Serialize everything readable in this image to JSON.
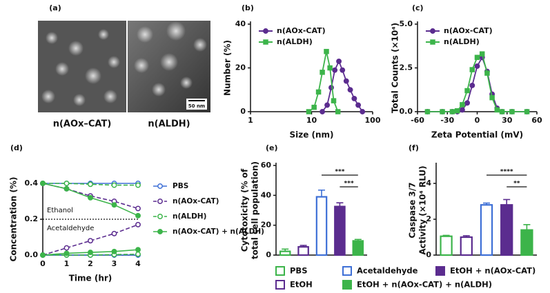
{
  "figure_a": {
    "panel": "(a)",
    "captions": [
      "n(AOx–CAT)",
      "n(ALDH)"
    ],
    "scale_bar": "50 nm"
  },
  "chart_data": [
    {
      "type": "scatter",
      "panel": "(b)",
      "xlabel": "Size (nm)",
      "ylabel": "Number (%)",
      "xlog": true,
      "xlim": [
        1,
        100
      ],
      "xticks": [
        1,
        10,
        100
      ],
      "ylim": [
        0,
        40
      ],
      "yticks": [
        0,
        20,
        40
      ],
      "series": [
        {
          "name": "n(AOx-CAT)",
          "color": "#5b2c8f",
          "marker": "circle",
          "x": [
            15,
            18,
            21,
            24,
            28,
            32,
            37,
            43,
            50,
            58,
            68
          ],
          "values": [
            0,
            3,
            11,
            19,
            23,
            19,
            14,
            10,
            6,
            3,
            0
          ]
        },
        {
          "name": "n(ALDH)",
          "color": "#3cb44a",
          "marker": "square",
          "x": [
            9,
            11,
            13,
            15,
            17.5,
            20,
            23,
            27
          ],
          "values": [
            0,
            2,
            9,
            18,
            27.5,
            20,
            5,
            0
          ]
        }
      ]
    },
    {
      "type": "scatter",
      "panel": "(c)",
      "xlabel": "Zeta Potential (mV)",
      "ylabel": "Total Counts (×10⁴)",
      "xlim": [
        -60,
        60
      ],
      "xticks": [
        -60,
        -30,
        0,
        30,
        60
      ],
      "ylim": [
        0,
        5
      ],
      "yticks": [
        {
          "value": 0,
          "label": "0.0"
        },
        {
          "value": 2.5,
          "label": "2.5"
        },
        {
          "value": 5,
          "label": "5.0"
        }
      ],
      "series": [
        {
          "name": "n(AOx-CAT)",
          "color": "#5b2c8f",
          "marker": "circle",
          "x": [
            -50,
            -35,
            -25,
            -20,
            -15,
            -10,
            -5,
            0,
            5,
            10,
            15,
            20,
            25,
            35,
            50
          ],
          "values": [
            0,
            0,
            0,
            0,
            0.1,
            0.5,
            1.5,
            2.6,
            3.1,
            2.3,
            1,
            0.2,
            0,
            0,
            0
          ]
        },
        {
          "name": "n(ALDH)",
          "color": "#3cb44a",
          "marker": "square",
          "x": [
            -50,
            -35,
            -25,
            -20,
            -15,
            -10,
            -5,
            0,
            5,
            10,
            15,
            20,
            25,
            35,
            50
          ],
          "values": [
            0,
            0,
            0,
            0.05,
            0.4,
            1.2,
            2.4,
            3.1,
            3.3,
            2.2,
            0.8,
            0.1,
            0,
            0,
            0
          ]
        }
      ]
    },
    {
      "type": "line",
      "panel": "(d)",
      "xlabel": "Time (hr)",
      "ylabel": "Concentration (%)",
      "x": [
        0,
        1,
        2,
        3,
        4
      ],
      "xlim": [
        0,
        4
      ],
      "xticks": [
        0,
        1,
        2,
        3,
        4
      ],
      "ylim": [
        0,
        0.4
      ],
      "yticks": [
        {
          "value": 0,
          "label": "0.0"
        },
        {
          "value": 0.2,
          "label": "0.2"
        },
        {
          "value": 0.4,
          "label": "0.4"
        }
      ],
      "hline": 0.2,
      "annotations": [
        "Ethanol",
        "Acetaldehyde"
      ],
      "series": [
        {
          "name": "PBS",
          "color": "#3d6fd6",
          "filled": false,
          "dashed": false,
          "ethanol": [
            0.4,
            0.4,
            0.4,
            0.4,
            0.4
          ],
          "acetaldehyde": [
            0,
            0,
            0,
            0,
            0
          ]
        },
        {
          "name": "n(AOx-CAT)",
          "color": "#5b2c8f",
          "filled": false,
          "dashed": true,
          "ethanol": [
            0.4,
            0.37,
            0.33,
            0.3,
            0.26
          ],
          "acetaldehyde": [
            0,
            0.04,
            0.08,
            0.12,
            0.17
          ]
        },
        {
          "name": "n(ALDH)",
          "color": "#3cb44a",
          "filled": false,
          "dashed": true,
          "ethanol": [
            0.4,
            0.4,
            0.395,
            0.39,
            0.39
          ],
          "acetaldehyde": [
            0,
            0,
            0,
            0.003,
            0.005
          ]
        },
        {
          "name": "n(AOx-CAT) + n(ALDH)",
          "color": "#3cb44a",
          "filled": true,
          "dashed": false,
          "ethanol": [
            0.4,
            0.37,
            0.32,
            0.28,
            0.22
          ],
          "acetaldehyde": [
            0,
            0.01,
            0.015,
            0.02,
            0.03
          ]
        }
      ]
    },
    {
      "type": "bar",
      "panel": "(e)",
      "ylabel": [
        "Cytotoxicity (% of",
        "total cell population)"
      ],
      "categories": [
        "PBS",
        "EtOH",
        "Acetaldehyde",
        "EtOH + n(AOx-CAT)",
        "EtOH + n(AOx-CAT) + n(ALDH)"
      ],
      "colors": [
        "#3cb44a",
        "#5b2c8f",
        "#3d6fd6",
        "#5b2c8f",
        "#3cb44a"
      ],
      "filled": [
        false,
        false,
        false,
        true,
        true
      ],
      "values": [
        2.5,
        5.5,
        39,
        32.5,
        9.5
      ],
      "errors": [
        1.5,
        1,
        4.5,
        2.5,
        1
      ],
      "ylim": [
        0,
        60
      ],
      "yticks": [
        0,
        20,
        40,
        60
      ],
      "significance": [
        {
          "from": 2,
          "to": 4,
          "label": "***"
        },
        {
          "from": 3,
          "to": 4,
          "label": "***"
        }
      ]
    },
    {
      "type": "bar",
      "panel": "(f)",
      "ylabel": [
        "Caspase 3/7",
        "Activity (×10⁴ RLU)"
      ],
      "colors": [
        "#3cb44a",
        "#5b2c8f",
        "#3d6fd6",
        "#5b2c8f",
        "#3cb44a"
      ],
      "filled": [
        false,
        false,
        false,
        true,
        true
      ],
      "values": [
        1.05,
        1,
        2.8,
        2.8,
        1.4
      ],
      "errors": [
        0.05,
        0.08,
        0.1,
        0.3,
        0.3
      ],
      "ylim": [
        0,
        5
      ],
      "yticks": [
        0,
        2,
        4
      ],
      "significance": [
        {
          "from": 2,
          "to": 4,
          "label": "****"
        },
        {
          "from": 3,
          "to": 4,
          "label": "**"
        }
      ]
    }
  ]
}
